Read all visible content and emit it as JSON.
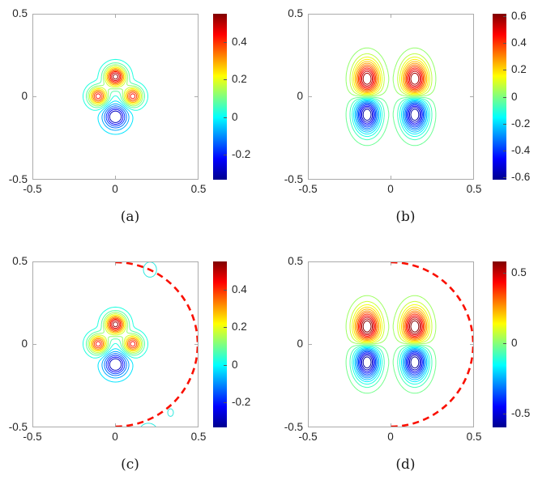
{
  "figure_background": "#ffffff",
  "colors": {
    "frame": "#ababab",
    "tick_label": "#262626",
    "colormap_name": "jet",
    "colorbar_gradient_stops": [
      "#00008f",
      "#0000ff",
      "#00ffff",
      "#ffff00",
      "#ff0000",
      "#800000"
    ],
    "dashed_circle": "#fa0f00",
    "artifact_contour": "#2fe8df"
  },
  "axis": {
    "x_ticks": [
      "-0.5",
      "0",
      "0.5"
    ],
    "y_ticks": [
      "0.5",
      "0",
      "-0.5"
    ]
  },
  "chart_data": [
    {
      "id": "a",
      "type": "contour",
      "caption": "(a)",
      "x_range": [
        -0.5,
        0.5
      ],
      "y_range": [
        -0.5,
        0.5
      ],
      "x_tick_values": [
        -0.5,
        0,
        0.5
      ],
      "y_tick_values": [
        -0.5,
        0,
        0.5
      ],
      "colormap": "jet",
      "grid": false,
      "colorbar": {
        "vmin": -0.334,
        "vmax": 0.552,
        "ticks": [
          {
            "value": 0.4,
            "label": "0.4"
          },
          {
            "value": 0.2,
            "label": "0.2"
          },
          {
            "value": 0,
            "label": "0"
          },
          {
            "value": -0.2,
            "label": "-0.2"
          }
        ]
      },
      "levels": {
        "min": -0.275,
        "max": 0.525,
        "step": 0.05
      },
      "peaks": [
        {
          "x": 0,
          "y": 0.122,
          "amp": 0.56,
          "sx": 0.042,
          "sy": 0.042
        },
        {
          "x": -0.105,
          "y": 0.003,
          "amp": 0.46,
          "sx": 0.038,
          "sy": 0.038
        },
        {
          "x": 0.105,
          "y": 0.003,
          "amp": 0.46,
          "sx": 0.038,
          "sy": 0.038
        },
        {
          "x": 0,
          "y": -0.122,
          "amp": -0.37,
          "sx": 0.046,
          "sy": 0.046
        }
      ],
      "overlay_circle": null,
      "artifacts": []
    },
    {
      "id": "b",
      "type": "contour",
      "caption": "(b)",
      "x_range": [
        -0.5,
        0.5
      ],
      "y_range": [
        -0.5,
        0.5
      ],
      "x_tick_values": [
        -0.5,
        0,
        0.5
      ],
      "y_tick_values": [
        -0.5,
        0,
        0.5
      ],
      "colormap": "jet",
      "grid": false,
      "colorbar": {
        "vmin": -0.62,
        "vmax": 0.62,
        "ticks": [
          {
            "value": 0.6,
            "label": "0.6"
          },
          {
            "value": 0.4,
            "label": "0.4"
          },
          {
            "value": 0.2,
            "label": "0.2"
          },
          {
            "value": 0,
            "label": "0"
          },
          {
            "value": -0.2,
            "label": "-0.2"
          },
          {
            "value": -0.4,
            "label": "-0.4"
          },
          {
            "value": -0.6,
            "label": "-0.6"
          }
        ]
      },
      "levels": {
        "min": -0.575,
        "max": 0.575,
        "step": 0.05
      },
      "peaks": [
        {
          "x": -0.145,
          "y": 0.105,
          "amp": 0.66,
          "sx": 0.05,
          "sy": 0.075
        },
        {
          "x": 0.145,
          "y": 0.105,
          "amp": 0.66,
          "sx": 0.05,
          "sy": 0.075
        },
        {
          "x": -0.145,
          "y": -0.105,
          "amp": -0.66,
          "sx": 0.05,
          "sy": 0.075
        },
        {
          "x": 0.145,
          "y": -0.105,
          "amp": -0.66,
          "sx": 0.05,
          "sy": 0.075
        }
      ],
      "overlay_circle": null,
      "artifacts": []
    },
    {
      "id": "c",
      "type": "contour",
      "caption": "(c)",
      "x_range": [
        -0.5,
        0.5
      ],
      "y_range": [
        -0.5,
        0.5
      ],
      "x_tick_values": [
        -0.5,
        0,
        0.5
      ],
      "y_tick_values": [
        -0.5,
        0,
        0.5
      ],
      "colormap": "jet",
      "grid": false,
      "colorbar": {
        "vmin": -0.334,
        "vmax": 0.552,
        "ticks": [
          {
            "value": 0.4,
            "label": "0.4"
          },
          {
            "value": 0.2,
            "label": "0.2"
          },
          {
            "value": 0,
            "label": "0"
          },
          {
            "value": -0.2,
            "label": "-0.2"
          }
        ]
      },
      "levels": {
        "min": -0.275,
        "max": 0.525,
        "step": 0.05
      },
      "peaks": [
        {
          "x": 0,
          "y": 0.122,
          "amp": 0.56,
          "sx": 0.042,
          "sy": 0.042
        },
        {
          "x": -0.105,
          "y": 0.003,
          "amp": 0.46,
          "sx": 0.038,
          "sy": 0.038
        },
        {
          "x": 0.105,
          "y": 0.003,
          "amp": 0.46,
          "sx": 0.038,
          "sy": 0.038
        },
        {
          "x": 0,
          "y": -0.122,
          "amp": -0.37,
          "sx": 0.046,
          "sy": 0.046
        }
      ],
      "overlay_circle": {
        "cx": 0,
        "cy": 0,
        "r": 0.5,
        "side": "right",
        "color": "#fa0f00",
        "width": 2.6,
        "dash": "8 5.5"
      },
      "artifacts": [
        {
          "cx": 0.21,
          "cy": 0.455,
          "rx": 0.04,
          "ry": 0.046
        },
        {
          "cx": 0.335,
          "cy": -0.415,
          "rx": 0.017,
          "ry": 0.023
        },
        {
          "cx": 0.2,
          "cy": -0.53,
          "rx": 0.055,
          "ry": 0.05
        }
      ]
    },
    {
      "id": "d",
      "type": "contour",
      "caption": "(d)",
      "x_range": [
        -0.5,
        0.5
      ],
      "y_range": [
        -0.5,
        0.5
      ],
      "x_tick_values": [
        -0.5,
        0,
        0.5
      ],
      "y_tick_values": [
        -0.5,
        0,
        0.5
      ],
      "colormap": "jet",
      "grid": false,
      "colorbar": {
        "vmin": -0.6,
        "vmax": 0.58,
        "ticks": [
          {
            "value": 0.5,
            "label": "0.5"
          },
          {
            "value": 0,
            "label": "0"
          },
          {
            "value": -0.5,
            "label": "-0.5"
          }
        ]
      },
      "levels": {
        "min": -0.575,
        "max": 0.575,
        "step": 0.05
      },
      "peaks": [
        {
          "x": -0.145,
          "y": 0.105,
          "amp": 0.66,
          "sx": 0.05,
          "sy": 0.075
        },
        {
          "x": 0.145,
          "y": 0.105,
          "amp": 0.66,
          "sx": 0.05,
          "sy": 0.075
        },
        {
          "x": -0.145,
          "y": -0.105,
          "amp": -0.66,
          "sx": 0.05,
          "sy": 0.075
        },
        {
          "x": 0.145,
          "y": -0.105,
          "amp": -0.66,
          "sx": 0.05,
          "sy": 0.075
        }
      ],
      "overlay_circle": {
        "cx": 0,
        "cy": 0,
        "r": 0.5,
        "side": "right",
        "color": "#fa0f00",
        "width": 2.6,
        "dash": "8 5.5"
      },
      "artifacts": []
    }
  ]
}
